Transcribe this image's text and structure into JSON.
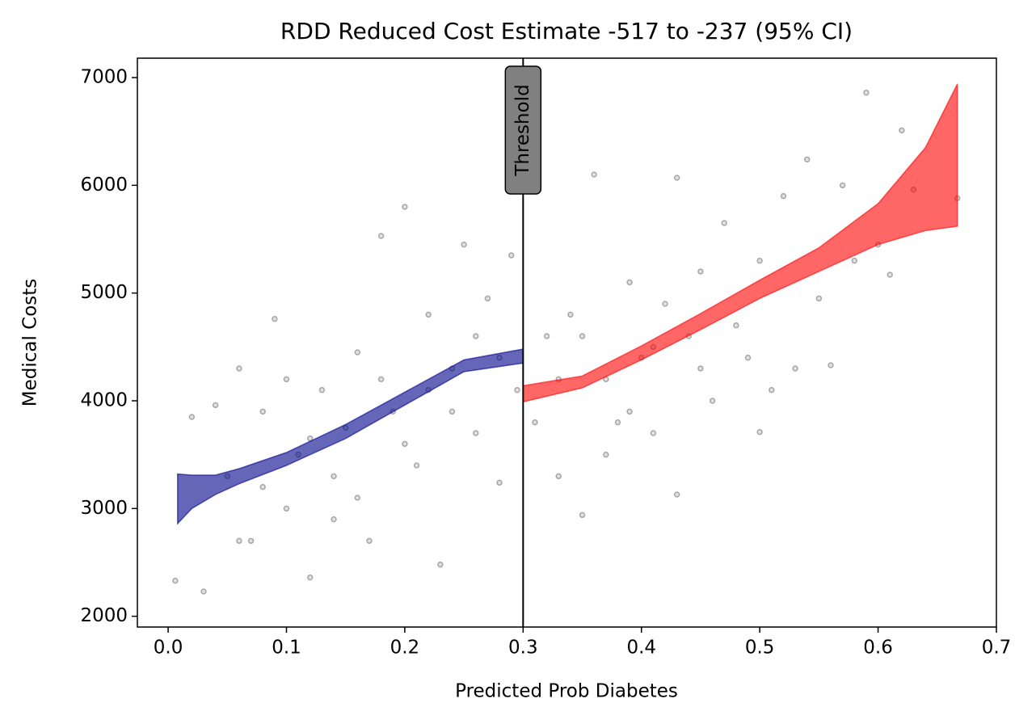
{
  "chart_data": {
    "type": "rdd",
    "title": "RDD Reduced Cost Estimate -517 to -237 (95% CI)",
    "x_label": "Predicted Prob Diabetes",
    "y_label": "Medical Costs",
    "xlim": [
      -0.026,
      0.7
    ],
    "ylim": [
      1900,
      7180
    ],
    "xticks": [
      {
        "value": 0,
        "label": "0.0"
      },
      0.1,
      0.2,
      0.3,
      0.4,
      0.5,
      0.6,
      0.7
    ],
    "yticks": [
      2000,
      3000,
      4000,
      5000,
      6000,
      7000
    ],
    "threshold": {
      "x": 0.3,
      "label": "Threshold"
    },
    "points": {
      "color": "#000000",
      "x": [
        0.006,
        0.02,
        0.03,
        0.04,
        0.05,
        0.06,
        0.07,
        0.08,
        0.09,
        0.1,
        0.11,
        0.12,
        0.13,
        0.14,
        0.15,
        0.16,
        0.17,
        0.18,
        0.19,
        0.2,
        0.21,
        0.22,
        0.23,
        0.24,
        0.25,
        0.26,
        0.27,
        0.28,
        0.29,
        0.295,
        0.31,
        0.32,
        0.33,
        0.34,
        0.35,
        0.36,
        0.37,
        0.38,
        0.39,
        0.4,
        0.41,
        0.42,
        0.43,
        0.43,
        0.44,
        0.45,
        0.46,
        0.47,
        0.48,
        0.49,
        0.5,
        0.5,
        0.51,
        0.52,
        0.53,
        0.54,
        0.55,
        0.56,
        0.57,
        0.58,
        0.59,
        0.6,
        0.61,
        0.62,
        0.63,
        0.667,
        0.08,
        0.12,
        0.16,
        0.2,
        0.24,
        0.28,
        0.14,
        0.1,
        0.06,
        0.18,
        0.22,
        0.26,
        0.33,
        0.37,
        0.41,
        0.45,
        0.35,
        0.39
      ],
      "y": [
        2330,
        3850,
        2230,
        3960,
        3300,
        4300,
        2700,
        3900,
        4760,
        3000,
        3500,
        2360,
        4100,
        3300,
        3750,
        4450,
        2700,
        5530,
        3900,
        5800,
        3400,
        4800,
        2480,
        4300,
        5450,
        3700,
        4950,
        3240,
        5350,
        4100,
        3800,
        4600,
        3300,
        4800,
        2940,
        6100,
        4200,
        3800,
        5100,
        4400,
        3700,
        4900,
        3130,
        6070,
        4600,
        5200,
        4000,
        5650,
        4700,
        4400,
        3710,
        5300,
        4100,
        5900,
        4300,
        6240,
        4950,
        4330,
        6000,
        5300,
        6860,
        5450,
        5170,
        6510,
        5960,
        5880,
        3200,
        3650,
        3100,
        3600,
        3900,
        4400,
        2900,
        4200,
        2700,
        4200,
        4100,
        4600,
        4200,
        3500,
        4500,
        4300,
        4600,
        3900
      ]
    },
    "bands": [
      {
        "color": "#00008b",
        "x": [
          0.008,
          0.02,
          0.04,
          0.06,
          0.1,
          0.15,
          0.2,
          0.25,
          0.3
        ],
        "lower": [
          2860,
          3000,
          3130,
          3230,
          3400,
          3650,
          3960,
          4270,
          4350
        ],
        "upper": [
          3320,
          3310,
          3310,
          3370,
          3520,
          3780,
          4080,
          4380,
          4480
        ]
      },
      {
        "color": "#ff0000",
        "x": [
          0.3,
          0.35,
          0.4,
          0.45,
          0.5,
          0.55,
          0.6,
          0.64,
          0.667
        ],
        "lower": [
          3990,
          4120,
          4380,
          4660,
          4950,
          5200,
          5450,
          5580,
          5620
        ],
        "upper": [
          4140,
          4230,
          4510,
          4810,
          5120,
          5420,
          5830,
          6350,
          6940
        ]
      }
    ]
  }
}
